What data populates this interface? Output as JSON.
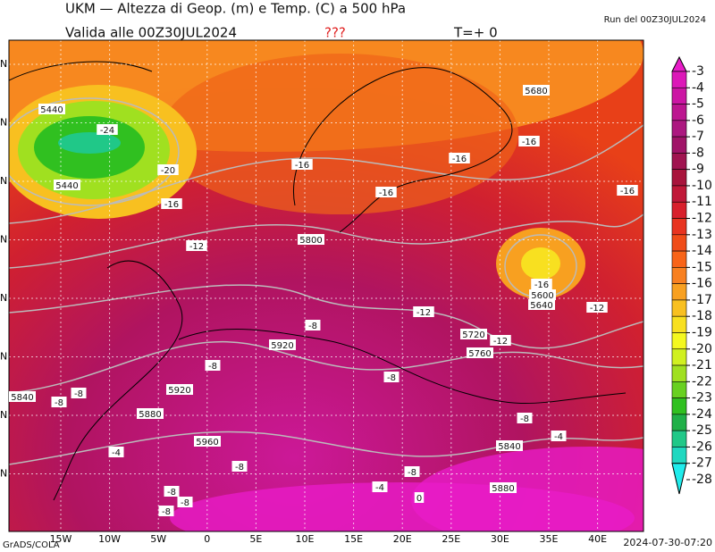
{
  "header": {
    "title": "UKM — Altezza di Geop. (m) e Temp. (C) a 500 hPa",
    "valid": "Valida alle 00Z30JUL2024",
    "flag": "???",
    "step": "T=+ 0",
    "run": "Run del 00Z30JUL2024"
  },
  "map": {
    "lon_labels": [
      "15W",
      "10W",
      "5W",
      "0",
      "5E",
      "10E",
      "15E",
      "20E",
      "25E",
      "30E",
      "35E",
      "40E"
    ],
    "lat_labels": [
      "N",
      "N",
      "N",
      "N",
      "N",
      "N",
      "N",
      "N"
    ],
    "contour_labels": [
      -24,
      5440,
      -20,
      5440,
      -16,
      -12,
      -16,
      -16,
      -16,
      -16,
      5680,
      -16,
      5800,
      -16,
      5600,
      5640,
      -12,
      -12,
      -8,
      5920,
      5720,
      -12,
      5760,
      -8,
      -8,
      5840,
      -8,
      -8,
      5920,
      5880,
      -8,
      -4,
      5840,
      -4,
      5960,
      -8,
      -8,
      -4,
      0,
      5880,
      -8,
      -8,
      -8
    ]
  },
  "colorbar": {
    "levels": [
      -3,
      -4,
      -5,
      -6,
      -7,
      -8,
      -9,
      -10,
      -11,
      -12,
      -13,
      -14,
      -15,
      -16,
      -17,
      -18,
      -19,
      -20,
      -21,
      -22,
      -23,
      -24,
      -25,
      -26,
      -27,
      -28
    ],
    "colors": [
      "#e81cc8",
      "#dc18b8",
      "#cc16a4",
      "#bc1690",
      "#ac1880",
      "#a01468",
      "#a01450",
      "#a8143c",
      "#c01838",
      "#d8202c",
      "#e83420",
      "#f04c18",
      "#f86418",
      "#f88020",
      "#f8a020",
      "#f8c020",
      "#f8e020",
      "#f4f820",
      "#d0f020",
      "#a0e020",
      "#68d020",
      "#30c020",
      "#20b048",
      "#20c888",
      "#20d8c0",
      "#20ecec"
    ]
  },
  "footer": {
    "left": "GrADS/COLA",
    "right": "2024-07-30-07:20"
  }
}
